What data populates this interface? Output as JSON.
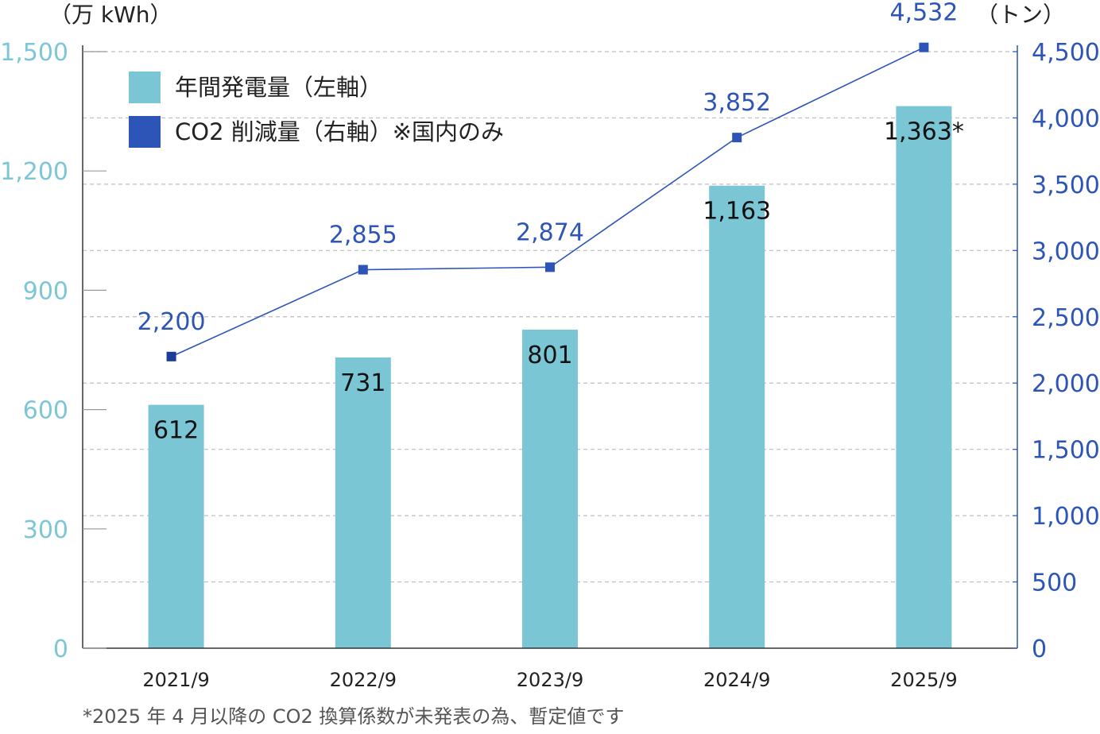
{
  "chart_data": {
    "type": "bar+line",
    "categories": [
      "2021/9",
      "2022/9",
      "2023/9",
      "2024/9",
      "2025/9"
    ],
    "series": [
      {
        "name": "年間発電量（左軸）",
        "type": "bar",
        "axis": "left",
        "values": [
          612,
          731,
          801,
          1163,
          1363
        ],
        "labels": [
          "612",
          "731",
          "801",
          "1,163",
          "1,363*"
        ],
        "color": "#7bc6d4"
      },
      {
        "name": "CO2 削減量（右軸）※国内のみ",
        "type": "line",
        "axis": "right",
        "values": [
          2200,
          2855,
          2874,
          3852,
          4532
        ],
        "labels": [
          "2,200",
          "2,855",
          "2,874",
          "3,852",
          "4,532"
        ],
        "color": "#2d55b7"
      }
    ],
    "left_axis": {
      "unit": "（万 kWh）",
      "range": [
        0,
        1500
      ],
      "ticks": [
        0,
        300,
        600,
        900,
        1200,
        1500
      ],
      "tick_labels": [
        "0",
        "300",
        "600",
        "900",
        "1,200",
        "1,500"
      ]
    },
    "right_axis": {
      "unit": "（トン）",
      "range": [
        0,
        4500
      ],
      "ticks": [
        0,
        500,
        1000,
        1500,
        2000,
        2500,
        3000,
        3500,
        4000,
        4500
      ],
      "tick_labels": [
        "0",
        "500",
        "1,000",
        "1,500",
        "2,000",
        "2,500",
        "3,000",
        "3,500",
        "4,000",
        "4,500"
      ]
    },
    "legend_position": "top-left",
    "grid": true,
    "note": "*2025 年 4 月以降の CO2 換算係数が未発表の為、暫定値です"
  },
  "colors": {
    "bar": "#7bc6d4",
    "line": "#2d55b7",
    "left_axis_text": "#7cc6d6",
    "right_axis_text": "#2d55b7",
    "grid": "#bdbdbd"
  }
}
